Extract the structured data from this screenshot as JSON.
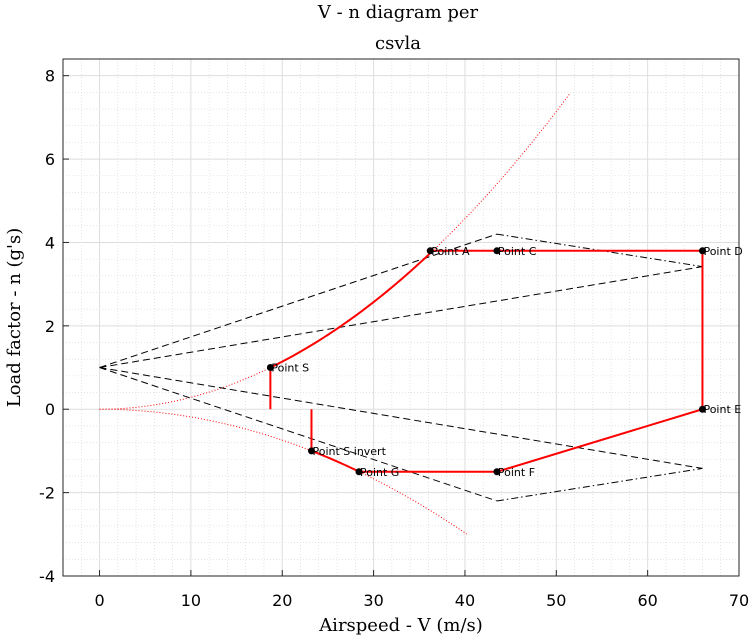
{
  "chart_data": {
    "type": "line",
    "title": [
      "V - n diagram per",
      "csvla"
    ],
    "xlabel": "Airspeed - V (m/s)",
    "ylabel": "Load factor - n (g's)",
    "xlim": [
      -4,
      70
    ],
    "ylim": [
      -4,
      8.4
    ],
    "xticks": [
      0,
      10,
      20,
      30,
      40,
      50,
      60,
      70
    ],
    "yticks": [
      -4,
      -2,
      0,
      2,
      4,
      6,
      8
    ],
    "grid": true,
    "minor_grid": true,
    "stall_curve_positive": {
      "color": "#ff0000",
      "style": "dotted",
      "v_max": 51.5,
      "k": 0.002856
    },
    "stall_curve_negative": {
      "color": "#ff0000",
      "style": "dotted",
      "v_max": 40.2,
      "k": -0.001853
    },
    "gust_lines": {
      "color": "#000000",
      "dashed": [
        [
          [
            0,
            1
          ],
          [
            43.5,
            4.2
          ]
        ],
        [
          [
            0,
            1
          ],
          [
            66,
            3.42
          ]
        ],
        [
          [
            0,
            1
          ],
          [
            66,
            -1.42
          ]
        ],
        [
          [
            0,
            1
          ],
          [
            43.5,
            -2.2
          ]
        ]
      ],
      "dashdot": [
        [
          [
            43.5,
            4.2
          ],
          [
            66,
            3.42
          ]
        ],
        [
          [
            43.5,
            -2.2
          ],
          [
            66,
            -1.42
          ]
        ]
      ]
    },
    "envelope": {
      "color": "#ff0000",
      "positive_path": [
        [
          18.7,
          0
        ],
        [
          18.7,
          1.0
        ]
      ],
      "stall_arc": {
        "v_start": 18.7,
        "v_end": 36.2
      },
      "top_path": [
        [
          36.2,
          3.8
        ],
        [
          43.5,
          3.8
        ],
        [
          66,
          3.8
        ],
        [
          66,
          0
        ],
        [
          43.5,
          -1.5
        ],
        [
          28.4,
          -1.5
        ]
      ],
      "negative_arc": {
        "v_start": 28.4,
        "v_end": 23.2
      },
      "negative_path": [
        [
          23.2,
          -1.0
        ],
        [
          23.2,
          0
        ]
      ]
    },
    "points": [
      {
        "label": "Point A",
        "x": 36.2,
        "y": 3.8
      },
      {
        "label": "Point C",
        "x": 43.5,
        "y": 3.8
      },
      {
        "label": "Point D",
        "x": 66,
        "y": 3.8
      },
      {
        "label": "Point S",
        "x": 18.7,
        "y": 1.0
      },
      {
        "label": "Point E",
        "x": 66,
        "y": 0
      },
      {
        "label": "Point S invert",
        "x": 23.2,
        "y": -1.0
      },
      {
        "label": "Point G",
        "x": 28.4,
        "y": -1.5
      },
      {
        "label": "Point F",
        "x": 43.5,
        "y": -1.5
      }
    ]
  }
}
